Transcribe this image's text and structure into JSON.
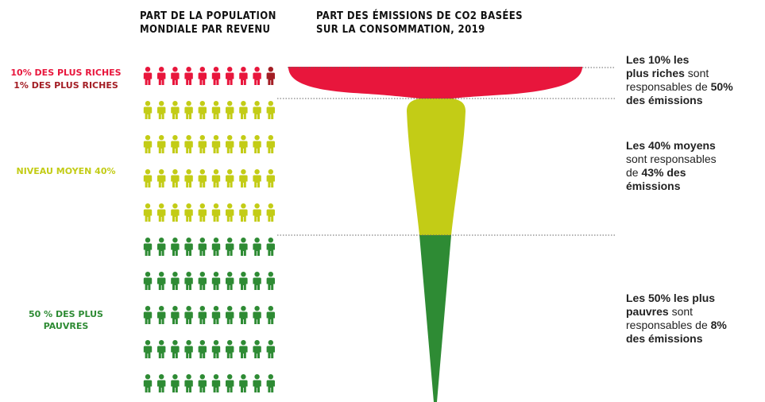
{
  "headers": {
    "population_line1": "PART DE LA POPULATION",
    "population_line2": "MONDIALE PAR REVENU",
    "emissions_line1": "PART DES ÉMISSIONS DE CO2 BASÉES",
    "emissions_line2": "SUR LA CONSOMMATION, 2019"
  },
  "groups": {
    "top10_label": "10% DES PLUS RICHES",
    "top1_label": "1% DES PLUS RICHES",
    "middle_label": "NIVEAU MOYEN 40%",
    "bottom_label_line1": "50 % DES PLUS",
    "bottom_label_line2": "PAUVRES"
  },
  "notes": {
    "top": {
      "p1": "Les 10% les",
      "p2": "plus riches",
      "p3": " sont",
      "p4": "responsables de ",
      "p5": "50%",
      "p6": "des émissions"
    },
    "middle": {
      "p1": "Les 40% moyens",
      "p2": "sont responsables",
      "p3": "de ",
      "p4": "43% des",
      "p5": "émissions"
    },
    "bottom": {
      "p1": "Les 50% les plus",
      "p2": "pauvres",
      "p3": " sont",
      "p4": "responsables de ",
      "p5": "8%",
      "p6": "des émissions"
    }
  },
  "colors": {
    "top1": "#a31d24",
    "top10": "#e8163c",
    "middle": "#c3cc16",
    "bottom": "#2e8b34",
    "label_top": "#e8163c",
    "label_top1": "#a31d24",
    "label_middle": "#c3cc16",
    "label_bottom": "#2e8b34"
  },
  "chart_data": {
    "type": "pictogram-funnel",
    "icons_per_row": 10,
    "population_rows": [
      {
        "group": "10% des plus riches",
        "icons": 9,
        "color_key": "top10"
      },
      {
        "group": "1% des plus riches",
        "icons": 1,
        "color_key": "top1"
      },
      {
        "group": "Niveau moyen 40%",
        "icons": 40,
        "color_key": "middle"
      },
      {
        "group": "50 % des plus pauvres",
        "icons": 50,
        "color_key": "bottom"
      }
    ],
    "emissions_share": [
      {
        "group": "Les 10% les plus riches",
        "share_percent": 50,
        "color_key": "top10"
      },
      {
        "group": "Les 40% moyens",
        "share_percent": 43,
        "color_key": "middle"
      },
      {
        "group": "Les 50% les plus pauvres",
        "share_percent": 8,
        "color_key": "bottom"
      }
    ]
  }
}
